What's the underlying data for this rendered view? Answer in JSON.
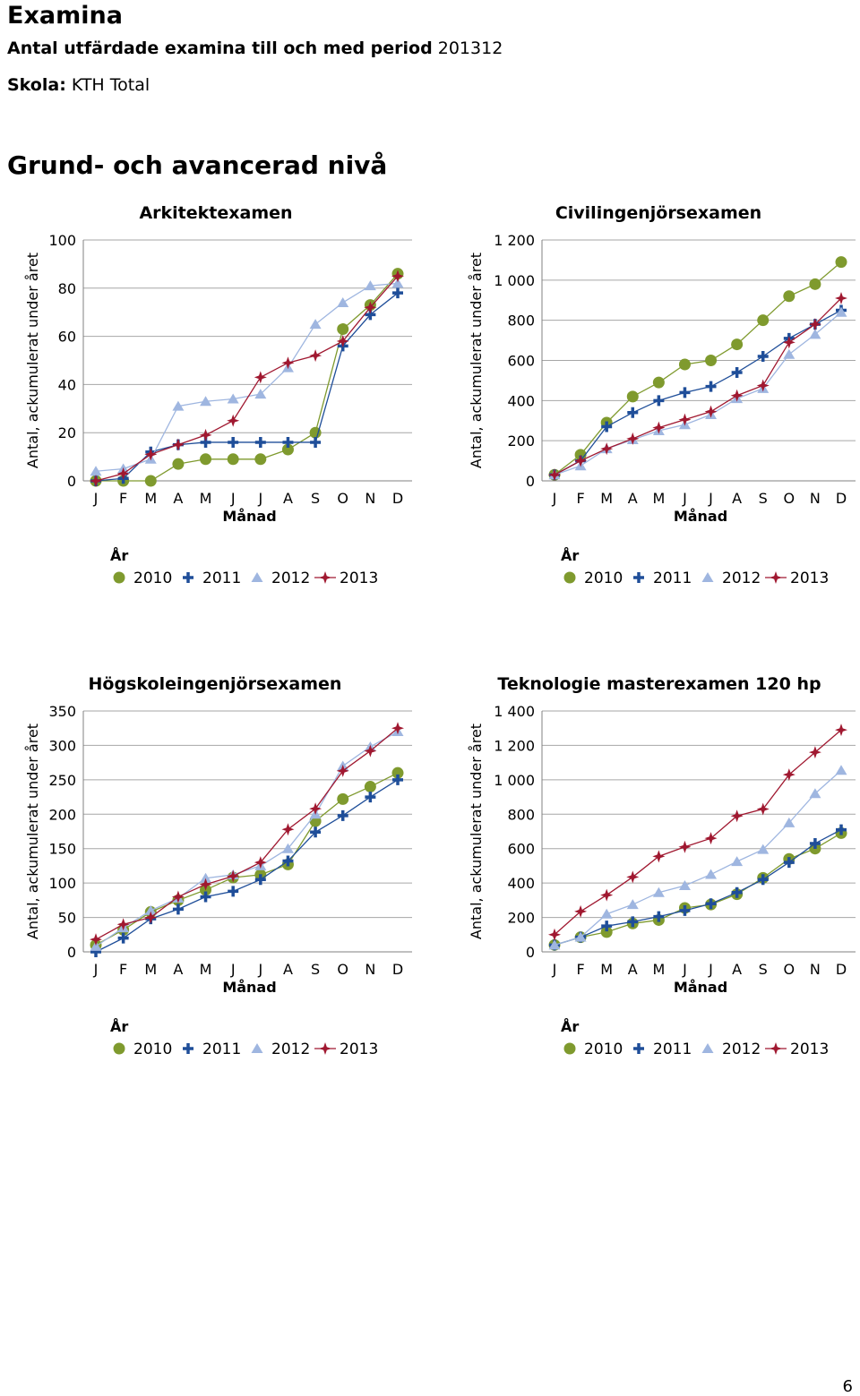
{
  "header": {
    "title": "Examina",
    "subtitle_bold": "Antal utfärdade examina till och med period",
    "subtitle_period": "201312",
    "school_label": "Skola:",
    "school_value": "KTH Total"
  },
  "section_title": "Grund- och avancerad nivå",
  "page_number": "6",
  "series_styles": [
    {
      "name": "2010",
      "color": "#7f9a2e",
      "marker": "circle"
    },
    {
      "name": "2011",
      "color": "#1f4e99",
      "marker": "plus"
    },
    {
      "name": "2012",
      "color": "#9fb6e0",
      "marker": "triangle"
    },
    {
      "name": "2013",
      "color": "#a01830",
      "marker": "star"
    }
  ],
  "chart_data": [
    {
      "type": "line",
      "title": "Arkitektexamen",
      "xlabel": "Månad",
      "ylabel": "Antal, ackumulerat under året",
      "legend_title": "År",
      "legend_position": "bottom",
      "grid": true,
      "categories": [
        "J",
        "F",
        "M",
        "A",
        "M",
        "J",
        "J",
        "A",
        "S",
        "O",
        "N",
        "D"
      ],
      "ylim": [
        0,
        100
      ],
      "yticks": [
        0,
        20,
        40,
        60,
        80,
        100
      ],
      "ytick_labels": [
        "0",
        "20",
        "40",
        "60",
        "80",
        "100"
      ],
      "series": [
        {
          "name": "2010",
          "values": [
            0,
            0,
            0,
            7,
            9,
            9,
            9,
            13,
            20,
            63,
            73,
            86
          ]
        },
        {
          "name": "2011",
          "values": [
            0,
            1,
            12,
            15,
            16,
            16,
            16,
            16,
            16,
            56,
            69,
            78
          ]
        },
        {
          "name": "2012",
          "values": [
            4,
            5,
            9,
            31,
            33,
            34,
            36,
            47,
            65,
            74,
            81,
            82
          ]
        },
        {
          "name": "2013",
          "values": [
            0,
            3,
            11,
            15,
            19,
            25,
            43,
            49,
            52,
            58,
            72,
            85
          ]
        }
      ]
    },
    {
      "type": "line",
      "title": "Civilingenjörsexamen",
      "xlabel": "Månad",
      "ylabel": "Antal, ackumulerat under året",
      "legend_title": "År",
      "legend_position": "bottom",
      "grid": true,
      "categories": [
        "J",
        "F",
        "M",
        "A",
        "M",
        "J",
        "J",
        "A",
        "S",
        "O",
        "N",
        "D"
      ],
      "ylim": [
        0,
        1200
      ],
      "yticks": [
        0,
        200,
        400,
        600,
        800,
        1000,
        1200
      ],
      "ytick_labels": [
        "0",
        "200",
        "400",
        "600",
        "800",
        "1 000",
        "1 200"
      ],
      "series": [
        {
          "name": "2010",
          "values": [
            30,
            130,
            290,
            420,
            490,
            580,
            600,
            680,
            800,
            920,
            980,
            1090
          ]
        },
        {
          "name": "2011",
          "values": [
            30,
            100,
            270,
            340,
            400,
            440,
            470,
            540,
            620,
            710,
            780,
            850
          ]
        },
        {
          "name": "2012",
          "values": [
            30,
            75,
            160,
            205,
            250,
            280,
            330,
            410,
            460,
            630,
            730,
            840
          ]
        },
        {
          "name": "2013",
          "values": [
            30,
            100,
            160,
            210,
            265,
            305,
            345,
            425,
            475,
            690,
            780,
            910
          ]
        }
      ]
    },
    {
      "type": "line",
      "title": "Högskoleingenjörsexamen",
      "xlabel": "Månad",
      "ylabel": "Antal, ackumulerat under året",
      "legend_title": "År",
      "legend_position": "bottom",
      "grid": true,
      "categories": [
        "J",
        "F",
        "M",
        "A",
        "M",
        "J",
        "J",
        "A",
        "S",
        "O",
        "N",
        "D"
      ],
      "ylim": [
        0,
        350
      ],
      "yticks": [
        0,
        50,
        100,
        150,
        200,
        250,
        300,
        350
      ],
      "ytick_labels": [
        "0",
        "50",
        "100",
        "150",
        "200",
        "250",
        "300",
        "350"
      ],
      "series": [
        {
          "name": "2010",
          "values": [
            10,
            32,
            58,
            75,
            90,
            108,
            112,
            127,
            190,
            222,
            240,
            260
          ]
        },
        {
          "name": "2011",
          "values": [
            0,
            20,
            48,
            62,
            80,
            88,
            105,
            132,
            174,
            198,
            225,
            250
          ]
        },
        {
          "name": "2012",
          "values": [
            8,
            35,
            60,
            78,
            107,
            112,
            125,
            150,
            200,
            270,
            298,
            320
          ]
        },
        {
          "name": "2013",
          "values": [
            18,
            40,
            50,
            80,
            98,
            110,
            130,
            178,
            208,
            263,
            292,
            325
          ]
        }
      ]
    },
    {
      "type": "line",
      "title": "Teknologie masterexamen 120 hp",
      "xlabel": "Månad",
      "ylabel": "Antal, ackumulerat under året",
      "legend_title": "År",
      "legend_position": "bottom",
      "grid": true,
      "categories": [
        "J",
        "F",
        "M",
        "A",
        "M",
        "J",
        "J",
        "A",
        "S",
        "O",
        "N",
        "D"
      ],
      "ylim": [
        0,
        1400
      ],
      "yticks": [
        0,
        200,
        400,
        600,
        800,
        1000,
        1200,
        1400
      ],
      "ytick_labels": [
        "0",
        "200",
        "400",
        "600",
        "800",
        "1 000",
        "1 200",
        "1 400"
      ],
      "series": [
        {
          "name": "2010",
          "values": [
            40,
            85,
            115,
            165,
            185,
            255,
            275,
            335,
            430,
            540,
            600,
            690
          ]
        },
        {
          "name": "2011",
          "values": [
            40,
            85,
            150,
            175,
            205,
            240,
            280,
            345,
            420,
            520,
            630,
            710
          ]
        },
        {
          "name": "2012",
          "values": [
            40,
            85,
            220,
            275,
            345,
            385,
            450,
            525,
            595,
            750,
            920,
            1055
          ]
        },
        {
          "name": "2013",
          "values": [
            100,
            235,
            330,
            435,
            555,
            610,
            660,
            790,
            830,
            1030,
            1160,
            1290
          ]
        }
      ]
    }
  ]
}
